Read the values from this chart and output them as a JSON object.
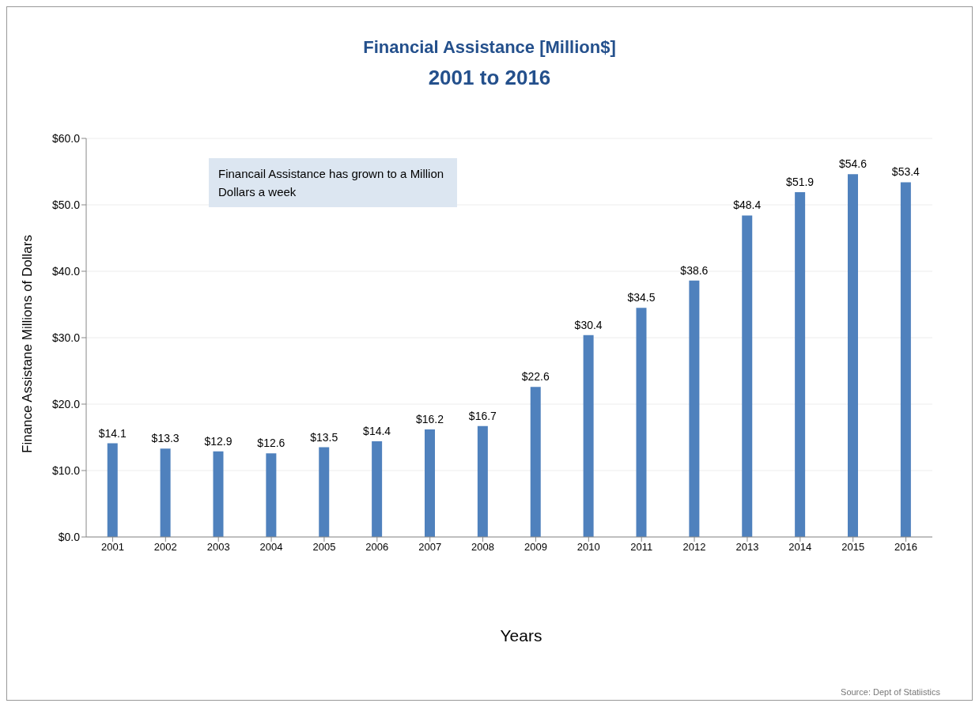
{
  "chart_data": {
    "type": "bar",
    "title": "Financial  Assistance [Million$]",
    "subtitle": "2001 to 2016",
    "xlabel": "Years",
    "ylabel": "Finance Assistane Millions of  Dollars",
    "annotations": [
      "Financail Assistance has grown to a Million Dollars a week",
      "Source: Dept of Statiistics"
    ],
    "categories": [
      "2001",
      "2002",
      "2003",
      "2004",
      "2005",
      "2006",
      "2007",
      "2008",
      "2009",
      "2010",
      "2011",
      "2012",
      "2013",
      "2014",
      "2015",
      "2016"
    ],
    "values": [
      14.1,
      13.3,
      12.9,
      12.6,
      13.5,
      14.4,
      16.2,
      16.7,
      22.6,
      30.4,
      34.5,
      38.6,
      48.4,
      51.9,
      54.6,
      53.4
    ],
    "value_labels": [
      "$14.1",
      "$13.3",
      "$12.9",
      "$12.6",
      "$13.5",
      "$14.4",
      "$16.2",
      "$16.7",
      "$22.6",
      "$30.4",
      "$34.5",
      "$38.6",
      "$48.4",
      "$51.9",
      "$54.6",
      "$53.4"
    ],
    "color": "#4f81bd",
    "ylim": [
      0,
      60
    ],
    "yticks": [
      {
        "value": 0,
        "label": "$0.0"
      },
      {
        "value": 10,
        "label": "$10.0"
      },
      {
        "value": 20,
        "label": "$20.0"
      },
      {
        "value": 30,
        "label": "$30.0"
      },
      {
        "value": 40,
        "label": "$40.0"
      },
      {
        "value": 50,
        "label": "$50.0"
      },
      {
        "value": 60,
        "label": "$60.0"
      }
    ],
    "grid": "y",
    "legend": false
  }
}
